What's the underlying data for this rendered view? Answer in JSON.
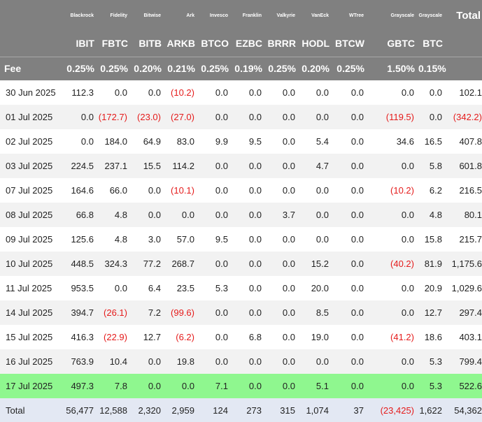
{
  "issuers": [
    "Blackrock",
    "Fidelity",
    "Bitwise",
    "Ark",
    "Invesco",
    "Franklin",
    "Valkyrie",
    "VanEck",
    "WTree",
    "Grayscale",
    "Grayscale"
  ],
  "total_header": "Total",
  "tickers": [
    "IBIT",
    "FBTC",
    "BITB",
    "ARKB",
    "BTCO",
    "EZBC",
    "BRRR",
    "HODL",
    "BTCW",
    "GBTC",
    "BTC"
  ],
  "fee_label": "Fee",
  "fees": [
    "0.25%",
    "0.25%",
    "0.20%",
    "0.21%",
    "0.25%",
    "0.19%",
    "0.25%",
    "0.20%",
    "0.25%",
    "1.50%",
    "0.15%"
  ],
  "rows": [
    {
      "date": "30 Jun 2025",
      "values": [
        "112.3",
        "0.0",
        "0.0",
        "(10.2)",
        "0.0",
        "0.0",
        "0.0",
        "0.0",
        "0.0",
        "0.0",
        "0.0"
      ],
      "total": "102.1"
    },
    {
      "date": "01 Jul 2025",
      "values": [
        "0.0",
        "(172.7)",
        "(23.0)",
        "(27.0)",
        "0.0",
        "0.0",
        "0.0",
        "0.0",
        "0.0",
        "(119.5)",
        "0.0"
      ],
      "total": "(342.2)"
    },
    {
      "date": "02 Jul 2025",
      "values": [
        "0.0",
        "184.0",
        "64.9",
        "83.0",
        "9.9",
        "9.5",
        "0.0",
        "5.4",
        "0.0",
        "34.6",
        "16.5"
      ],
      "total": "407.8"
    },
    {
      "date": "03 Jul 2025",
      "values": [
        "224.5",
        "237.1",
        "15.5",
        "114.2",
        "0.0",
        "0.0",
        "0.0",
        "4.7",
        "0.0",
        "0.0",
        "5.8"
      ],
      "total": "601.8"
    },
    {
      "date": "07 Jul 2025",
      "values": [
        "164.6",
        "66.0",
        "0.0",
        "(10.1)",
        "0.0",
        "0.0",
        "0.0",
        "0.0",
        "0.0",
        "(10.2)",
        "6.2"
      ],
      "total": "216.5"
    },
    {
      "date": "08 Jul 2025",
      "values": [
        "66.8",
        "4.8",
        "0.0",
        "0.0",
        "0.0",
        "0.0",
        "3.7",
        "0.0",
        "0.0",
        "0.0",
        "4.8"
      ],
      "total": "80.1"
    },
    {
      "date": "09 Jul 2025",
      "values": [
        "125.6",
        "4.8",
        "3.0",
        "57.0",
        "9.5",
        "0.0",
        "0.0",
        "0.0",
        "0.0",
        "0.0",
        "15.8"
      ],
      "total": "215.7"
    },
    {
      "date": "10 Jul 2025",
      "values": [
        "448.5",
        "324.3",
        "77.2",
        "268.7",
        "0.0",
        "0.0",
        "0.0",
        "15.2",
        "0.0",
        "(40.2)",
        "81.9"
      ],
      "total": "1,175.6"
    },
    {
      "date": "11 Jul 2025",
      "values": [
        "953.5",
        "0.0",
        "6.4",
        "23.5",
        "5.3",
        "0.0",
        "0.0",
        "20.0",
        "0.0",
        "0.0",
        "20.9"
      ],
      "total": "1,029.6"
    },
    {
      "date": "14 Jul 2025",
      "values": [
        "394.7",
        "(26.1)",
        "7.2",
        "(99.6)",
        "0.0",
        "0.0",
        "0.0",
        "8.5",
        "0.0",
        "0.0",
        "12.7"
      ],
      "total": "297.4"
    },
    {
      "date": "15 Jul 2025",
      "values": [
        "416.3",
        "(22.9)",
        "12.7",
        "(6.2)",
        "0.0",
        "6.8",
        "0.0",
        "19.0",
        "0.0",
        "(41.2)",
        "18.6"
      ],
      "total": "403.1"
    },
    {
      "date": "16 Jul 2025",
      "values": [
        "763.9",
        "10.4",
        "0.0",
        "19.8",
        "0.0",
        "0.0",
        "0.0",
        "0.0",
        "0.0",
        "0.0",
        "5.3"
      ],
      "total": "799.4"
    },
    {
      "date": "17 Jul 2025",
      "values": [
        "497.3",
        "7.8",
        "0.0",
        "0.0",
        "7.1",
        "0.0",
        "0.0",
        "5.1",
        "0.0",
        "0.0",
        "5.3"
      ],
      "total": "522.6",
      "highlight": true
    }
  ],
  "totals": {
    "label": "Total",
    "values": [
      "56,477",
      "12,588",
      "2,320",
      "2,959",
      "124",
      "273",
      "315",
      "1,074",
      "37",
      "(23,425)",
      "1,622"
    ],
    "total": "54,362"
  },
  "colors": {
    "header_bg": "#808080",
    "header_text": "#ffffff",
    "negative": "#e51b1b",
    "highlight_row": "#8ff78f",
    "total_row_bg": "#e3e8f3",
    "stripe": "#f2f2f2"
  }
}
